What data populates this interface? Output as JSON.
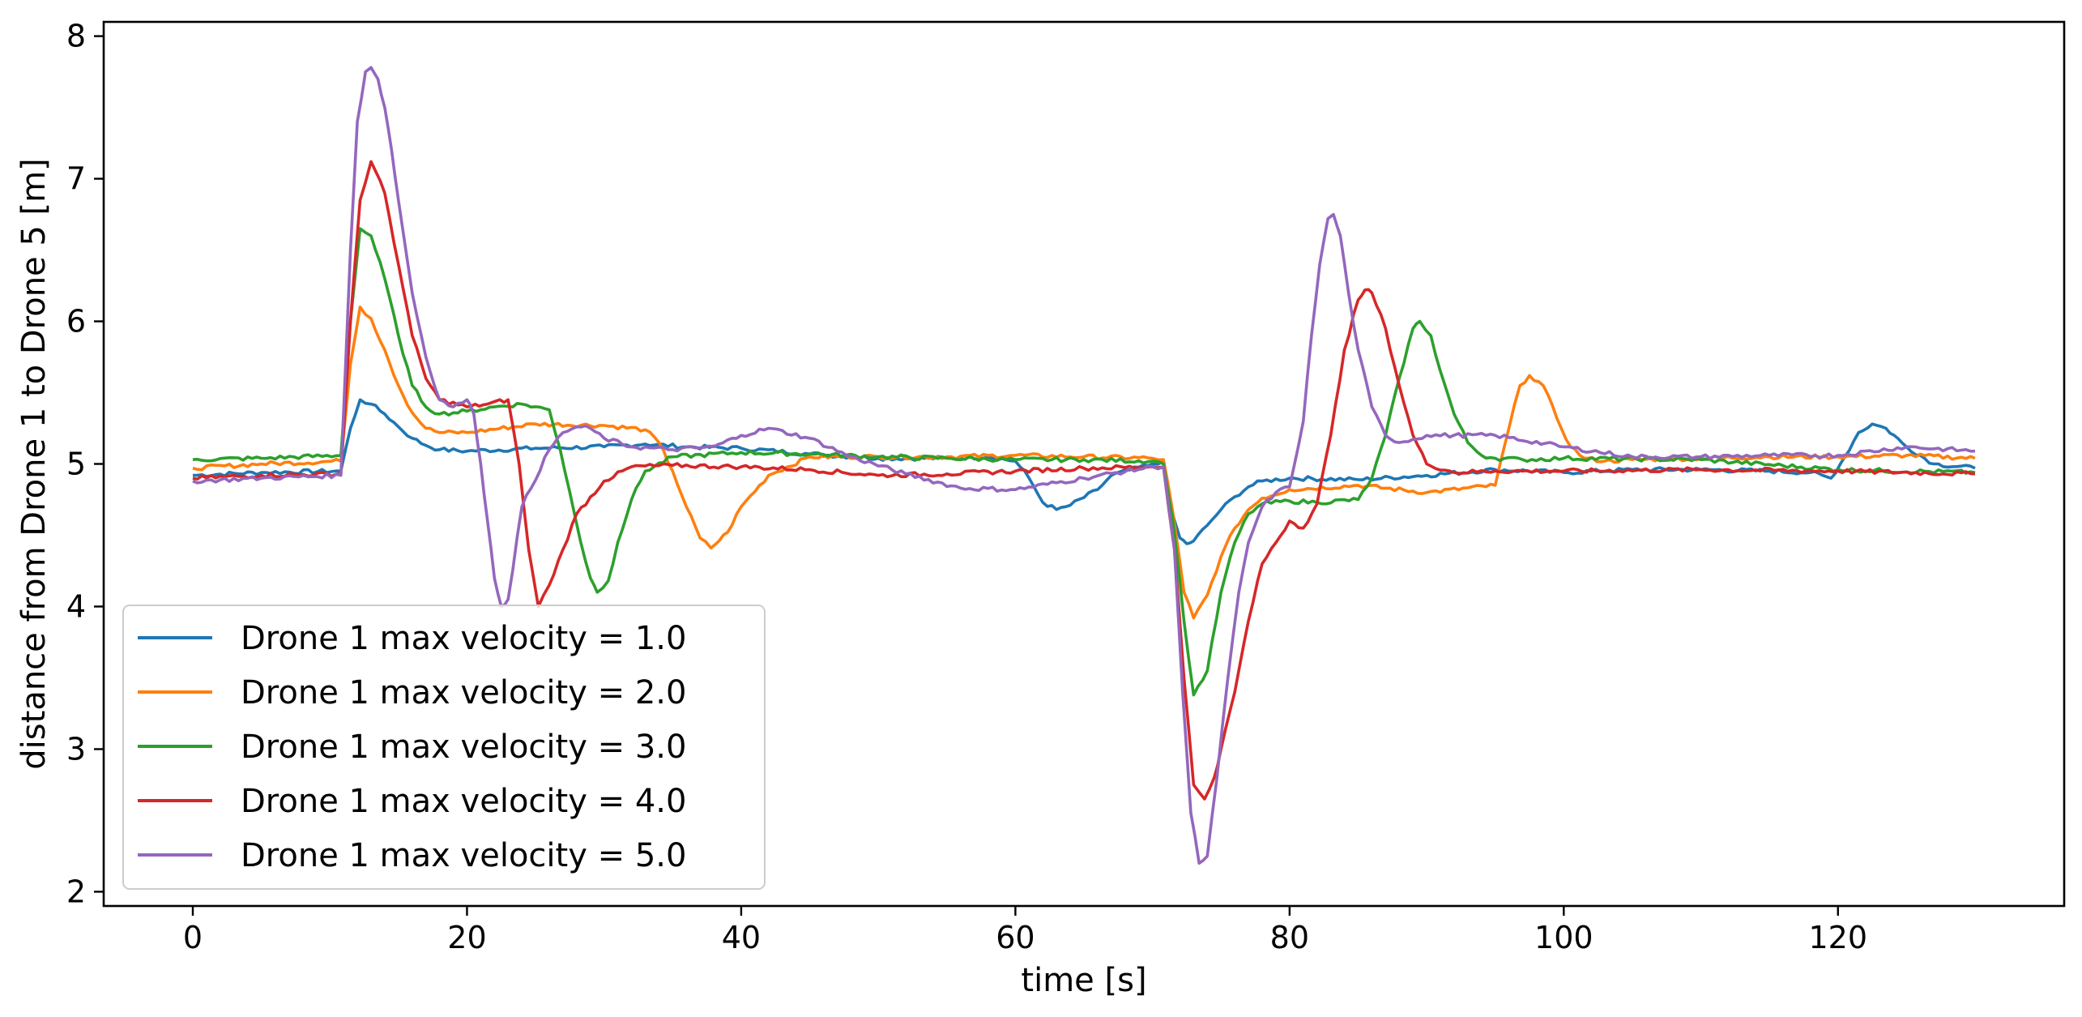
{
  "chart_data": {
    "type": "line",
    "title": "",
    "xlabel": "time [s]",
    "ylabel": "distance from Drone 1 to Drone 5 [m]",
    "xlim": [
      -6.5,
      136.5
    ],
    "ylim": [
      1.9,
      8.1
    ],
    "xticks": [
      0,
      20,
      40,
      60,
      80,
      100,
      120
    ],
    "yticks": [
      2,
      3,
      4,
      5,
      6,
      7,
      8
    ],
    "grid": false,
    "legend_position": "lower-left",
    "series": [
      {
        "name": "Drone 1 max velocity = 1.0",
        "color": "#1f77b4",
        "x": [
          0,
          5,
          10.8,
          11.5,
          12.2,
          13,
          14,
          15,
          16,
          17,
          18,
          20,
          25,
          30,
          33,
          36,
          40,
          45,
          50,
          55,
          58,
          60,
          61,
          62,
          63,
          64,
          66,
          67,
          70,
          70.8,
          71.3,
          72,
          72.5,
          73,
          74,
          75,
          76,
          77,
          78,
          80,
          85,
          90,
          95,
          100,
          105,
          110,
          115,
          118,
          119.5,
          120.5,
          121.5,
          122.5,
          123.5,
          125,
          127,
          130
        ],
        "values": [
          4.92,
          4.94,
          4.95,
          5.25,
          5.45,
          5.42,
          5.35,
          5.26,
          5.18,
          5.13,
          5.1,
          5.09,
          5.11,
          5.12,
          5.14,
          5.12,
          5.11,
          5.07,
          5.04,
          5.04,
          5.05,
          5.02,
          4.9,
          4.73,
          4.68,
          4.71,
          4.82,
          4.92,
          5.0,
          5.02,
          4.7,
          4.48,
          4.44,
          4.46,
          4.57,
          4.68,
          4.77,
          4.84,
          4.88,
          4.9,
          4.89,
          4.92,
          4.96,
          4.94,
          4.96,
          4.96,
          4.95,
          4.94,
          4.9,
          5.05,
          5.22,
          5.28,
          5.25,
          5.12,
          5.0,
          4.97
        ]
      },
      {
        "name": "Drone 1 max velocity = 2.0",
        "color": "#ff7f0e",
        "x": [
          0,
          5,
          10.8,
          11.5,
          12.2,
          13,
          14,
          15,
          16,
          17,
          18,
          20,
          25,
          30,
          33,
          34,
          35,
          36,
          37,
          37.8,
          39,
          40,
          42,
          45,
          50,
          55,
          60,
          65,
          70,
          70.8,
          71.5,
          72.3,
          73,
          74,
          75,
          76,
          77,
          78,
          80,
          85,
          90,
          95,
          96,
          96.8,
          97.5,
          98.5,
          99.5,
          100.5,
          101.5,
          103,
          105,
          110,
          115,
          120,
          125,
          130
        ],
        "values": [
          4.97,
          5.0,
          5.02,
          5.7,
          6.1,
          6.02,
          5.8,
          5.55,
          5.36,
          5.25,
          5.22,
          5.22,
          5.28,
          5.27,
          5.24,
          5.15,
          4.95,
          4.7,
          4.48,
          4.41,
          4.52,
          4.7,
          4.92,
          5.05,
          5.05,
          5.05,
          5.06,
          5.05,
          5.04,
          5.03,
          4.65,
          4.1,
          3.92,
          4.08,
          4.35,
          4.55,
          4.68,
          4.76,
          4.82,
          4.85,
          4.8,
          4.85,
          5.25,
          5.55,
          5.62,
          5.55,
          5.32,
          5.12,
          5.04,
          5.02,
          5.03,
          5.04,
          5.05,
          5.05,
          5.06,
          5.04
        ]
      },
      {
        "name": "Drone 1 max velocity = 3.0",
        "color": "#2ca02c",
        "x": [
          0,
          5,
          10.8,
          11.5,
          12.2,
          13,
          14,
          15,
          16,
          17,
          18,
          20,
          22,
          24,
          26,
          26.8,
          27.5,
          28.3,
          29,
          29.5,
          30.3,
          31,
          32,
          33,
          35,
          40,
          45,
          50,
          55,
          60,
          65,
          70,
          70.8,
          71.5,
          72.3,
          73,
          74,
          75,
          76,
          77,
          78,
          80,
          82,
          85,
          86,
          87,
          88,
          89,
          89.5,
          90.3,
          91,
          92,
          93,
          94,
          95,
          97,
          100,
          110,
          120,
          130
        ],
        "values": [
          5.03,
          5.04,
          5.06,
          6.0,
          6.65,
          6.6,
          6.3,
          5.9,
          5.55,
          5.4,
          5.35,
          5.37,
          5.4,
          5.42,
          5.38,
          5.1,
          4.8,
          4.45,
          4.2,
          4.1,
          4.18,
          4.45,
          4.75,
          4.95,
          5.05,
          5.08,
          5.07,
          5.05,
          5.04,
          5.03,
          5.03,
          5.02,
          5.0,
          4.6,
          3.9,
          3.38,
          3.55,
          4.1,
          4.45,
          4.65,
          4.72,
          4.74,
          4.73,
          4.75,
          4.9,
          5.2,
          5.6,
          5.95,
          6.0,
          5.9,
          5.65,
          5.35,
          5.15,
          5.06,
          5.04,
          5.03,
          5.04,
          5.03,
          4.96,
          4.94
        ]
      },
      {
        "name": "Drone 1 max velocity = 4.0",
        "color": "#d62728",
        "x": [
          0,
          5,
          10.8,
          11.5,
          12.2,
          13,
          14,
          15,
          16,
          17,
          18,
          20,
          21.5,
          23,
          23.8,
          24.5,
          25.2,
          26,
          27,
          28,
          30,
          32,
          35,
          40,
          45,
          50,
          55,
          60,
          65,
          70,
          70.8,
          71.6,
          72.3,
          73,
          73.8,
          74.5,
          75,
          76,
          77,
          78,
          80,
          81,
          82,
          83,
          84,
          85,
          85.5,
          86,
          87,
          88,
          89,
          90,
          92,
          95,
          100,
          110,
          120,
          130
        ],
        "values": [
          4.9,
          4.92,
          4.93,
          6.0,
          6.85,
          7.12,
          6.9,
          6.4,
          5.9,
          5.6,
          5.45,
          5.4,
          5.42,
          5.45,
          5.0,
          4.4,
          4.0,
          4.15,
          4.4,
          4.65,
          4.88,
          4.98,
          4.99,
          4.98,
          4.96,
          4.92,
          4.93,
          4.95,
          4.97,
          4.98,
          4.98,
          4.4,
          3.5,
          2.75,
          2.65,
          2.8,
          3.0,
          3.4,
          3.9,
          4.3,
          4.6,
          4.55,
          4.72,
          5.2,
          5.8,
          6.15,
          6.22,
          6.2,
          5.95,
          5.55,
          5.2,
          5.0,
          4.94,
          4.95,
          4.95,
          4.96,
          4.95,
          4.93
        ]
      },
      {
        "name": "Drone 1 max velocity = 5.0",
        "color": "#9467bd",
        "x": [
          0,
          5,
          10.8,
          11.5,
          12,
          12.6,
          13,
          13.5,
          14,
          14.5,
          15,
          16,
          17,
          18,
          19,
          20,
          20.5,
          21,
          21.5,
          22,
          22.5,
          23,
          24,
          26,
          27,
          28,
          29,
          30,
          32,
          35,
          38,
          40,
          42,
          45,
          48,
          52,
          56,
          60,
          65,
          70,
          70.8,
          71.6,
          72.2,
          72.8,
          73.4,
          74,
          74.7,
          75.5,
          76.3,
          77,
          78,
          79,
          80,
          81,
          81.6,
          82.2,
          82.8,
          83.2,
          83.7,
          84.3,
          85,
          86,
          87,
          88,
          90,
          95,
          100,
          105,
          110,
          115,
          120,
          125,
          130
        ],
        "values": [
          4.88,
          4.9,
          4.92,
          6.5,
          7.4,
          7.75,
          7.78,
          7.7,
          7.5,
          7.2,
          6.85,
          6.2,
          5.75,
          5.45,
          5.4,
          5.45,
          5.35,
          5.0,
          4.6,
          4.2,
          4.0,
          4.05,
          4.7,
          5.1,
          5.22,
          5.26,
          5.25,
          5.18,
          5.12,
          5.1,
          5.12,
          5.2,
          5.25,
          5.18,
          5.05,
          4.93,
          4.83,
          4.82,
          4.9,
          4.98,
          4.98,
          4.4,
          3.4,
          2.55,
          2.2,
          2.25,
          2.8,
          3.5,
          4.1,
          4.45,
          4.7,
          4.8,
          4.84,
          5.3,
          5.9,
          6.4,
          6.72,
          6.75,
          6.6,
          6.2,
          5.8,
          5.4,
          5.2,
          5.15,
          5.2,
          5.2,
          5.12,
          5.05,
          5.05,
          5.06,
          5.06,
          5.12,
          5.09
        ]
      }
    ]
  }
}
